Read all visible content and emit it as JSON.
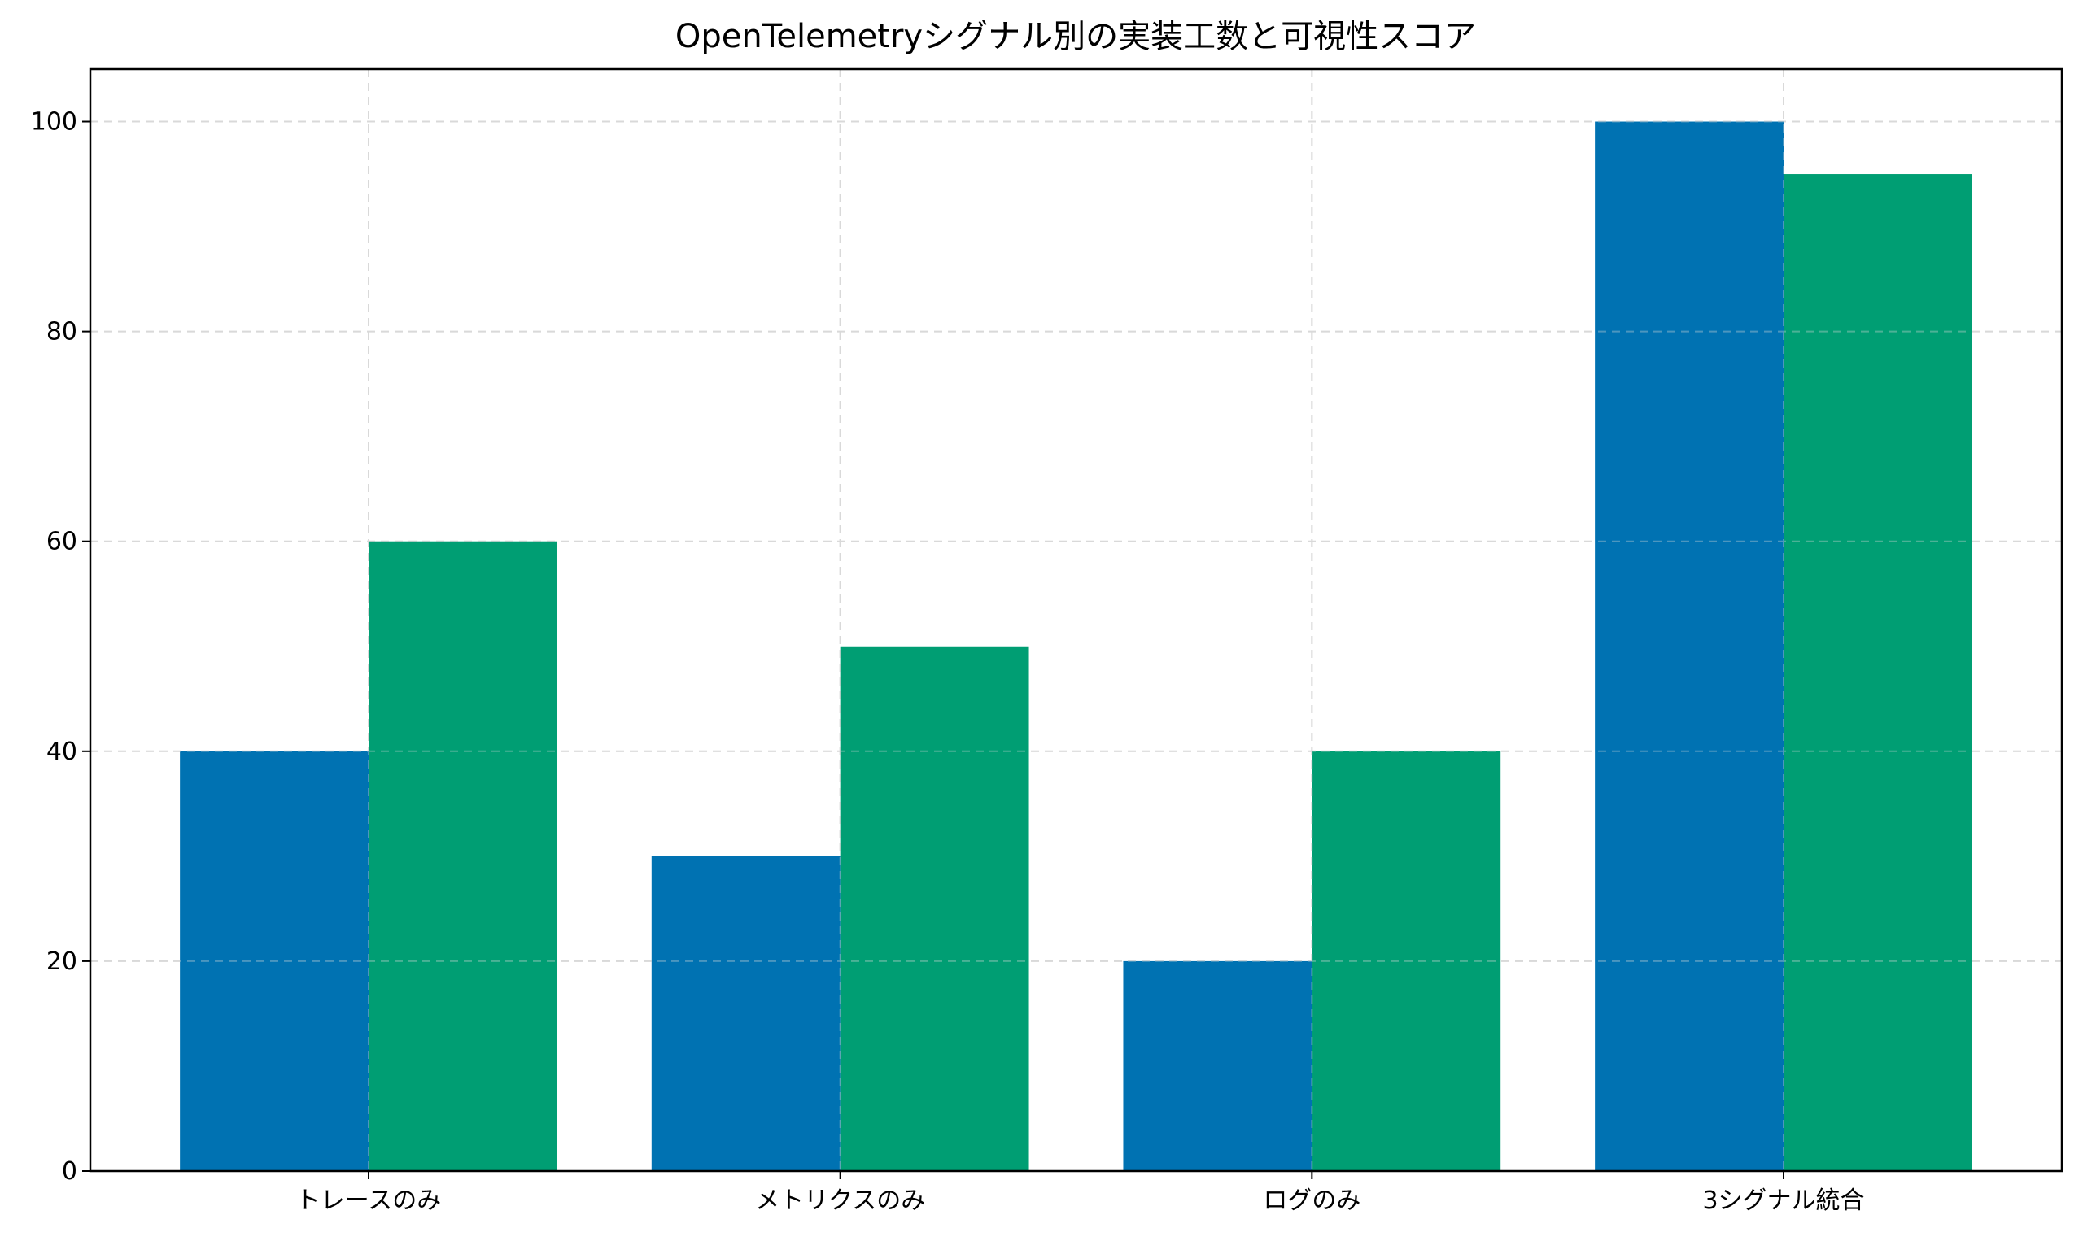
{
  "chart_data": {
    "type": "bar",
    "title": "OpenTelemetryシグナル別の実装工数と可視性スコア",
    "xlabel": "",
    "ylabel": "",
    "categories": [
      "トレースのみ",
      "メトリクスのみ",
      "ログのみ",
      "3シグナル統合"
    ],
    "series": [
      {
        "values": [
          40,
          30,
          20,
          100
        ],
        "color": "#0072B2"
      },
      {
        "values": [
          60,
          50,
          40,
          95
        ],
        "color": "#009E73"
      }
    ],
    "ylim": [
      0,
      105
    ],
    "yticks": [
      0,
      20,
      40,
      60,
      80,
      100
    ],
    "grid": true,
    "legend": "none"
  }
}
